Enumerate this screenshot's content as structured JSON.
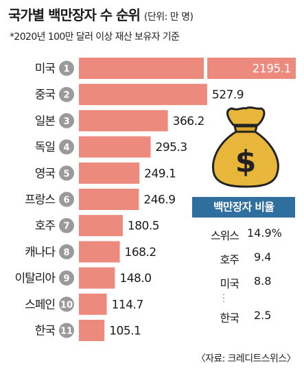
{
  "title": "국가별 백만장자 수 순위",
  "unit": "(단위: 만 명)",
  "subtitle": "*2020년 100만 달러 이상 재산 보유자 기준",
  "source": "〈자료: 크레디트스위스〉",
  "colors": {
    "bar": "#ec8a7e",
    "rank_circle": "#9a9a9a",
    "ratio_header": "#2f6f9f",
    "bag_body": "#e8b63a",
    "bag_outline": "#222222"
  },
  "icons": [
    "money-bag-icon",
    "dollar-sign-icon"
  ],
  "chart_data": {
    "type": "bar",
    "orientation": "horizontal",
    "title": "국가별 백만장자 수 순위",
    "categories": [
      "미국",
      "중국",
      "일본",
      "독일",
      "영국",
      "프랑스",
      "호주",
      "캐나다",
      "이탈리아",
      "스페인",
      "한국"
    ],
    "ranks": [
      "1",
      "2",
      "3",
      "4",
      "5",
      "6",
      "7",
      "8",
      "9",
      "10",
      "11"
    ],
    "values": [
      2195.1,
      527.9,
      366.2,
      295.3,
      249.1,
      246.9,
      180.5,
      168.2,
      148.0,
      114.7,
      105.1
    ],
    "value_labels": [
      "2195.1",
      "527.9",
      "366.2",
      "295.3",
      "249.1",
      "246.9",
      "180.5",
      "168.2",
      "148.0",
      "114.7",
      "105.1"
    ],
    "axis_break": true
  },
  "ratio_table": {
    "header": "백만장자 비율",
    "rows": [
      {
        "country": "스위스",
        "value": "14.9%"
      },
      {
        "country": "호주",
        "value": "9.4"
      },
      {
        "country": "미국",
        "value": "8.8"
      },
      {
        "country": "한국",
        "value": "2.5"
      }
    ]
  }
}
